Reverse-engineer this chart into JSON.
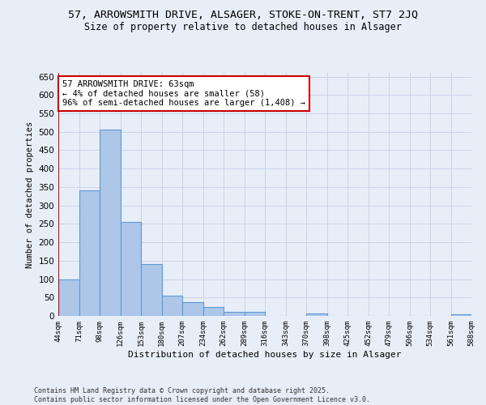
{
  "title": "57, ARROWSMITH DRIVE, ALSAGER, STOKE-ON-TRENT, ST7 2JQ",
  "subtitle": "Size of property relative to detached houses in Alsager",
  "xlabel": "Distribution of detached houses by size in Alsager",
  "ylabel": "Number of detached properties",
  "bar_values": [
    100,
    340,
    505,
    255,
    140,
    55,
    37,
    24,
    10,
    10,
    0,
    0,
    7,
    0,
    0,
    0,
    0,
    0,
    0,
    5
  ],
  "bar_labels": [
    "44sqm",
    "71sqm",
    "98sqm",
    "126sqm",
    "153sqm",
    "180sqm",
    "207sqm",
    "234sqm",
    "262sqm",
    "289sqm",
    "316sqm",
    "343sqm",
    "370sqm",
    "398sqm",
    "425sqm",
    "452sqm",
    "479sqm",
    "506sqm",
    "534sqm",
    "561sqm",
    "588sqm"
  ],
  "bar_color": "#aec6e8",
  "bar_edge_color": "#5b9bd5",
  "grid_color": "#c8d4e8",
  "background_color": "#e8eef8",
  "annotation_text": "57 ARROWSMITH DRIVE: 63sqm\n← 4% of detached houses are smaller (58)\n96% of semi-detached houses are larger (1,408) →",
  "annotation_box_color": "#ffffff",
  "annotation_border_color": "#cc0000",
  "footer_text": "Contains HM Land Registry data © Crown copyright and database right 2025.\nContains public sector information licensed under the Open Government Licence v3.0.",
  "ylim": [
    0,
    660
  ],
  "yticks": [
    0,
    50,
    100,
    150,
    200,
    250,
    300,
    350,
    400,
    450,
    500,
    550,
    600,
    650
  ]
}
